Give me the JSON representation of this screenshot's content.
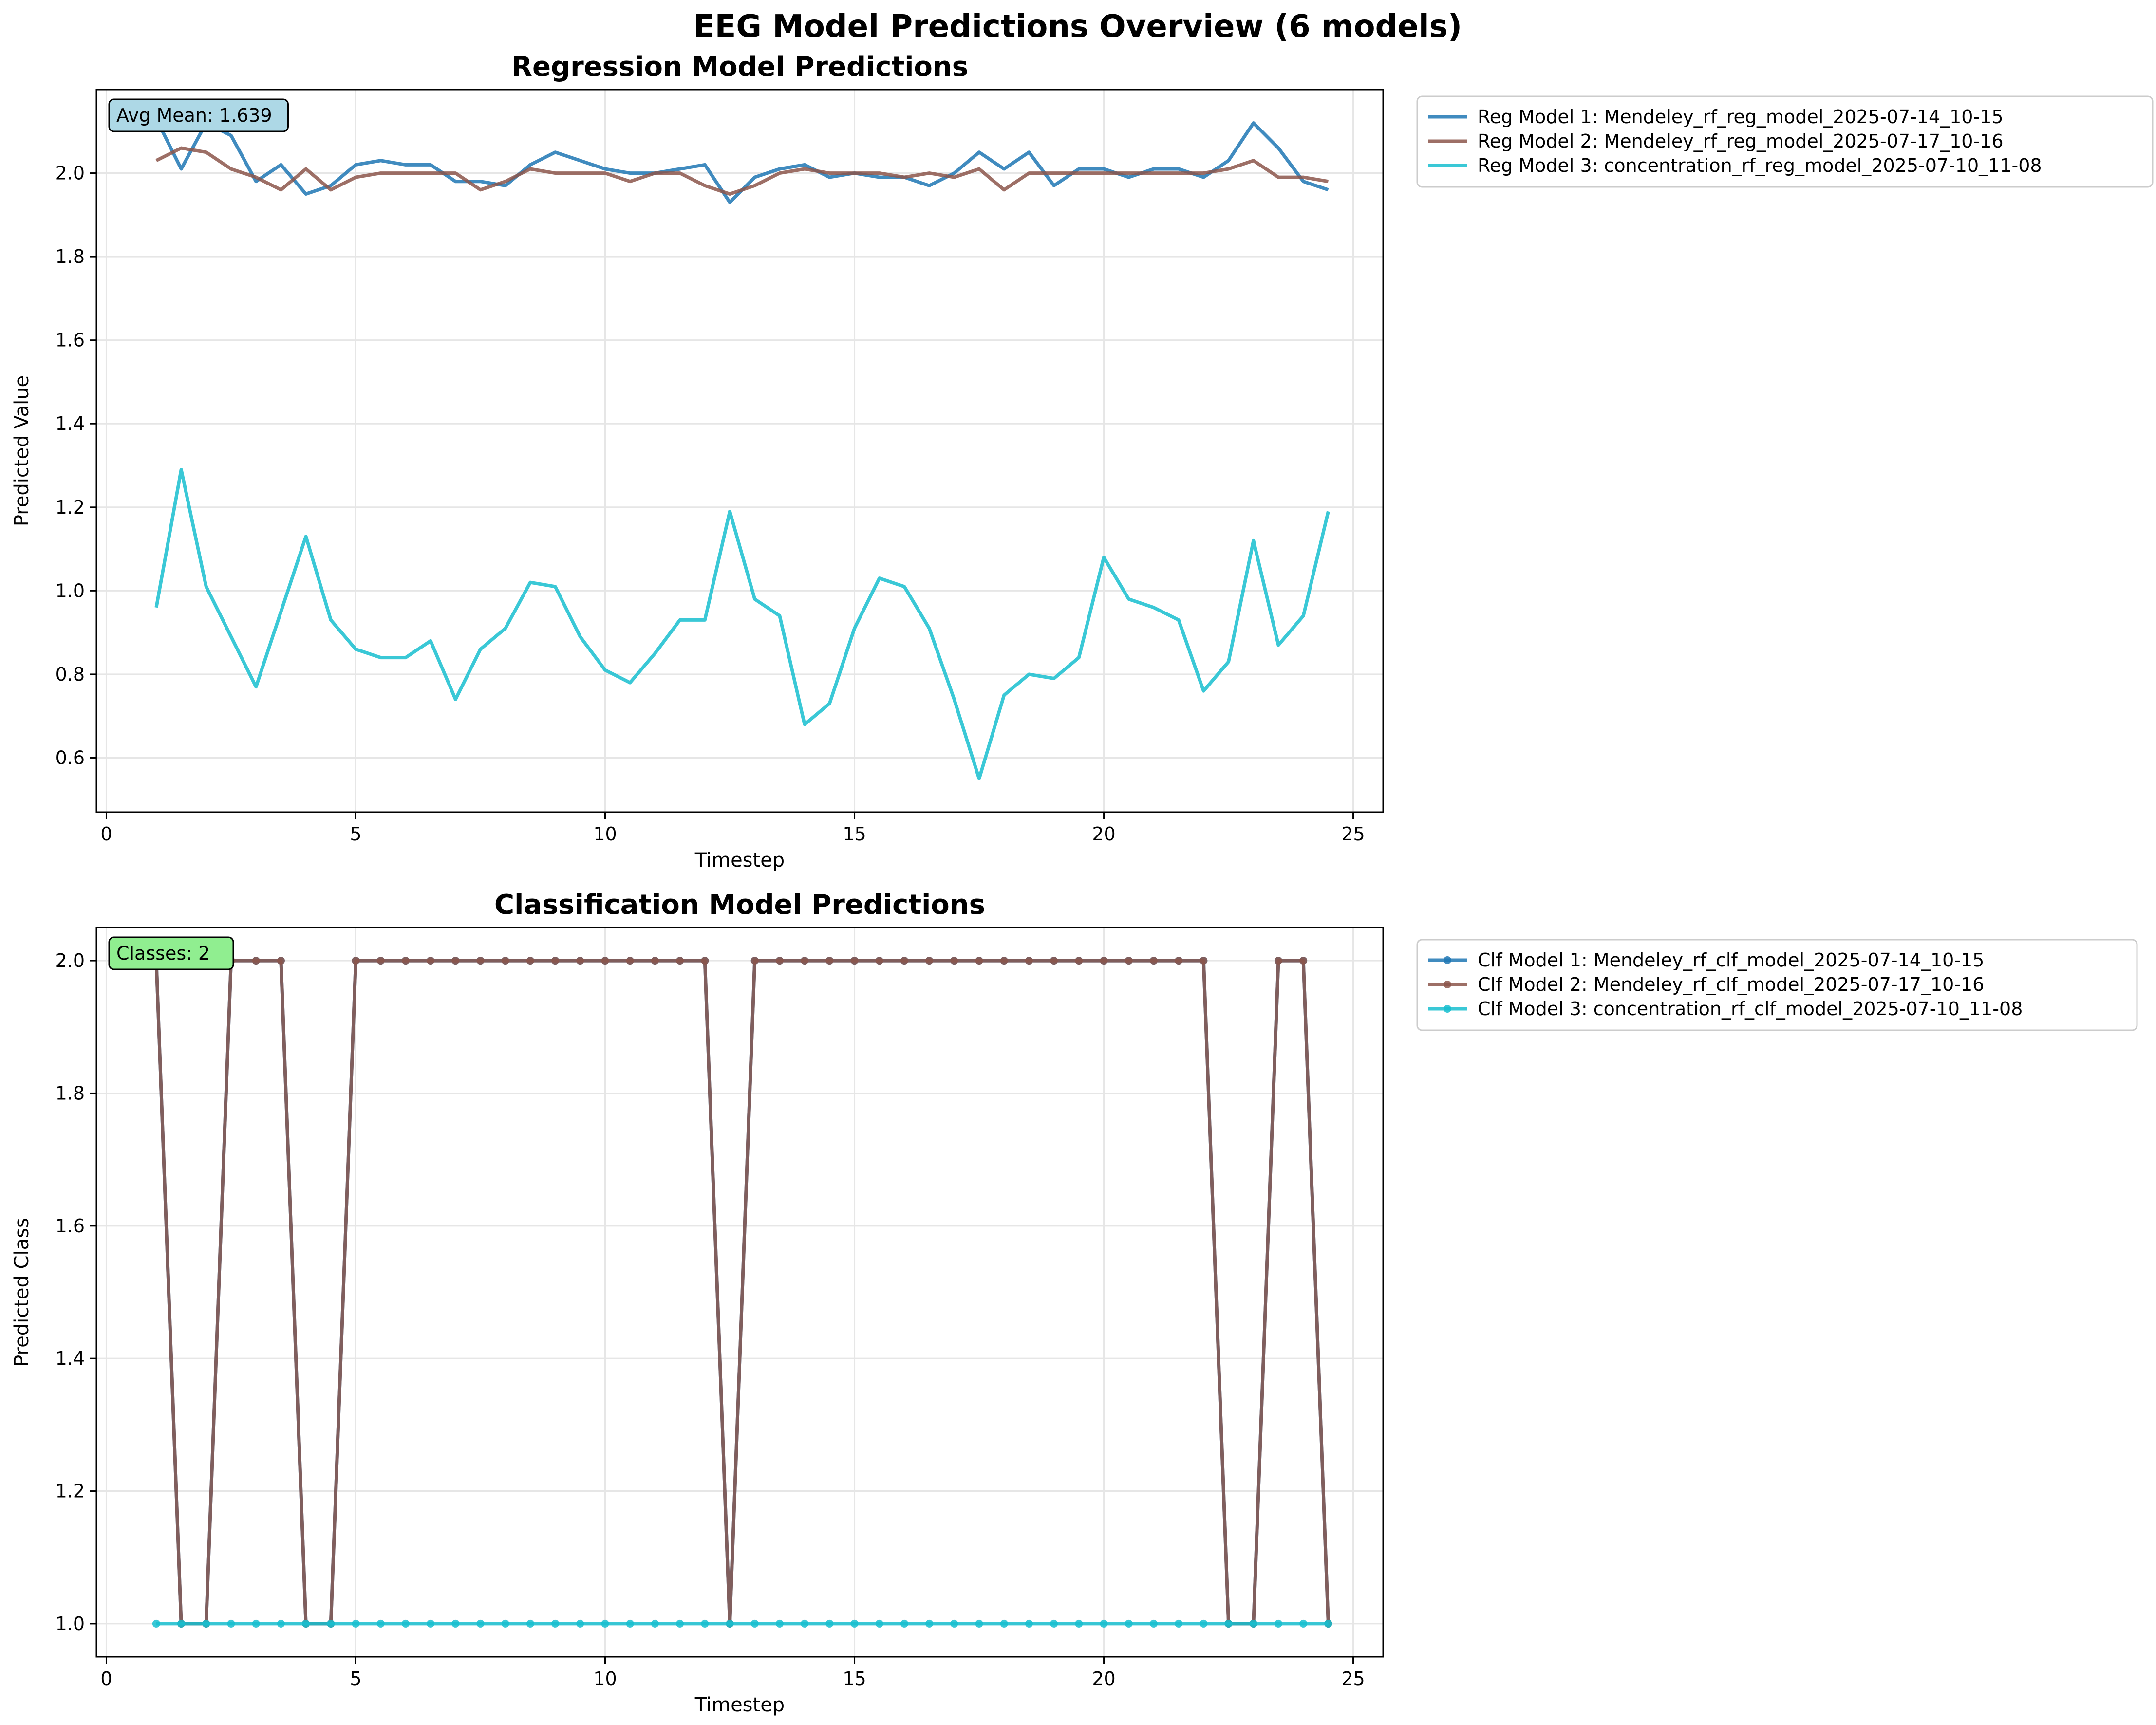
{
  "figure": {
    "title": "EEG Model Predictions Overview (6 models)"
  },
  "chart_data": [
    {
      "type": "line",
      "title": "Regression Model Predictions",
      "xlabel": "Timestep",
      "ylabel": "Predicted Value",
      "xlim": [
        -0.2,
        25.6
      ],
      "ylim": [
        0.47,
        2.2
      ],
      "xticks": [
        0,
        5,
        10,
        15,
        20,
        25
      ],
      "yticks": [
        0.6,
        0.8,
        1.0,
        1.2,
        1.4,
        1.6,
        1.8,
        2.0
      ],
      "ytick_labels": [
        "0.6",
        "0.8",
        "1.0",
        "1.2",
        "1.4",
        "1.6",
        "1.8",
        "2.0"
      ],
      "grid": true,
      "legend_position": "outside-right",
      "annotation": {
        "text": "Avg Mean: 1.639",
        "color": "#add8e6"
      },
      "x": [
        1.0,
        1.5,
        2.0,
        2.5,
        3.0,
        3.5,
        4.0,
        4.5,
        5.0,
        5.5,
        6.0,
        6.5,
        7.0,
        7.5,
        8.0,
        8.5,
        9.0,
        9.5,
        10.0,
        10.5,
        11.0,
        11.5,
        12.0,
        12.5,
        13.0,
        13.5,
        14.0,
        14.5,
        15.0,
        15.5,
        16.0,
        16.5,
        17.0,
        17.5,
        18.0,
        18.5,
        19.0,
        19.5,
        20.0,
        20.5,
        21.0,
        21.5,
        22.0,
        22.5,
        23.0,
        23.5,
        24.0,
        24.5
      ],
      "series": [
        {
          "name": "Reg Model 1: Mendeley_rf_reg_model_2025-07-14_10-15",
          "color": "#1f77b4",
          "markers": false,
          "values": [
            2.13,
            2.01,
            2.12,
            2.09,
            1.98,
            2.02,
            1.95,
            1.97,
            2.02,
            2.03,
            2.02,
            2.02,
            1.98,
            1.98,
            1.97,
            2.02,
            2.05,
            2.03,
            2.01,
            2.0,
            2.0,
            2.01,
            2.02,
            1.93,
            1.99,
            2.01,
            2.02,
            1.99,
            2.0,
            1.99,
            1.99,
            1.97,
            2.0,
            2.05,
            2.01,
            2.05,
            1.97,
            2.01,
            2.01,
            1.99,
            2.01,
            2.01,
            1.99,
            2.03,
            2.12,
            2.06,
            1.98,
            1.96
          ]
        },
        {
          "name": "Reg Model 2: Mendeley_rf_reg_model_2025-07-17_10-16",
          "color": "#8c564b",
          "markers": false,
          "values": [
            2.03,
            2.06,
            2.05,
            2.01,
            1.99,
            1.96,
            2.01,
            1.96,
            1.99,
            2.0,
            2.0,
            2.0,
            2.0,
            1.96,
            1.98,
            2.01,
            2.0,
            2.0,
            2.0,
            1.98,
            2.0,
            2.0,
            1.97,
            1.95,
            1.97,
            2.0,
            2.01,
            2.0,
            2.0,
            2.0,
            1.99,
            2.0,
            1.99,
            2.01,
            1.96,
            2.0,
            2.0,
            2.0,
            2.0,
            2.0,
            2.0,
            2.0,
            2.0,
            2.01,
            2.03,
            1.99,
            1.99,
            1.98
          ]
        },
        {
          "name": "Reg Model 3: concentration_rf_reg_model_2025-07-10_11-08",
          "color": "#17becf",
          "markers": false,
          "values": [
            0.96,
            1.29,
            1.01,
            0.89,
            0.77,
            0.95,
            1.13,
            0.93,
            0.86,
            0.84,
            0.84,
            0.88,
            0.74,
            0.86,
            0.91,
            1.02,
            1.01,
            0.89,
            0.81,
            0.78,
            0.85,
            0.93,
            0.93,
            1.19,
            0.98,
            0.94,
            0.68,
            0.73,
            0.91,
            1.03,
            1.01,
            0.91,
            0.74,
            0.55,
            0.75,
            0.8,
            0.79,
            0.84,
            1.08,
            0.98,
            0.96,
            0.93,
            0.76,
            0.83,
            1.12,
            0.87,
            0.94,
            1.19
          ]
        }
      ]
    },
    {
      "type": "line",
      "title": "Classification Model Predictions",
      "xlabel": "Timestep",
      "ylabel": "Predicted Class",
      "xlim": [
        -0.2,
        25.6
      ],
      "ylim": [
        0.95,
        2.05
      ],
      "xticks": [
        0,
        5,
        10,
        15,
        20,
        25
      ],
      "yticks": [
        1.0,
        1.2,
        1.4,
        1.6,
        1.8,
        2.0
      ],
      "ytick_labels": [
        "1.0",
        "1.2",
        "1.4",
        "1.6",
        "1.8",
        "2.0"
      ],
      "grid": true,
      "legend_position": "outside-right",
      "annotation": {
        "text": "Classes: 2",
        "color": "#90ee90"
      },
      "x": [
        1.0,
        1.5,
        2.0,
        2.5,
        3.0,
        3.5,
        4.0,
        4.5,
        5.0,
        5.5,
        6.0,
        6.5,
        7.0,
        7.5,
        8.0,
        8.5,
        9.0,
        9.5,
        10.0,
        10.5,
        11.0,
        11.5,
        12.0,
        12.5,
        13.0,
        13.5,
        14.0,
        14.5,
        15.0,
        15.5,
        16.0,
        16.5,
        17.0,
        17.5,
        18.0,
        18.5,
        19.0,
        19.5,
        20.0,
        20.5,
        21.0,
        21.5,
        22.0,
        22.5,
        23.0,
        23.5,
        24.0,
        24.5
      ],
      "series": [
        {
          "name": "Clf Model 1: Mendeley_rf_clf_model_2025-07-14_10-15",
          "color": "#1f77b4",
          "markers": true,
          "values": [
            2,
            1,
            1,
            2,
            2,
            2,
            1,
            1,
            2,
            2,
            2,
            2,
            2,
            2,
            2,
            2,
            2,
            2,
            2,
            2,
            2,
            2,
            2,
            1,
            2,
            2,
            2,
            2,
            2,
            2,
            2,
            2,
            2,
            2,
            2,
            2,
            2,
            2,
            2,
            2,
            2,
            2,
            2,
            1,
            1,
            2,
            2,
            1
          ]
        },
        {
          "name": "Clf Model 2: Mendeley_rf_clf_model_2025-07-17_10-16",
          "color": "#8c564b",
          "markers": true,
          "values": [
            2,
            1,
            1,
            2,
            2,
            2,
            1,
            1,
            2,
            2,
            2,
            2,
            2,
            2,
            2,
            2,
            2,
            2,
            2,
            2,
            2,
            2,
            2,
            1,
            2,
            2,
            2,
            2,
            2,
            2,
            2,
            2,
            2,
            2,
            2,
            2,
            2,
            2,
            2,
            2,
            2,
            2,
            2,
            1,
            1,
            2,
            2,
            1
          ]
        },
        {
          "name": "Clf Model 3: concentration_rf_clf_model_2025-07-10_11-08",
          "color": "#17becf",
          "markers": true,
          "values": [
            1,
            1,
            1,
            1,
            1,
            1,
            1,
            1,
            1,
            1,
            1,
            1,
            1,
            1,
            1,
            1,
            1,
            1,
            1,
            1,
            1,
            1,
            1,
            1,
            1,
            1,
            1,
            1,
            1,
            1,
            1,
            1,
            1,
            1,
            1,
            1,
            1,
            1,
            1,
            1,
            1,
            1,
            1,
            1,
            1,
            1,
            1,
            1
          ]
        }
      ]
    }
  ]
}
